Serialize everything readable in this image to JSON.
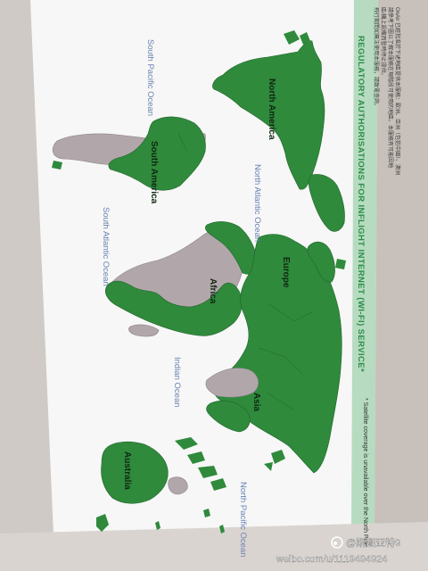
{
  "header": {
    "title": "REGULATORY AUTHORISATIONS FOR INFLIGHT INTERNET (WI-FI) SERVICE*",
    "chinese_lines": [
      "OnAir 已經批准於下述地區提供本服務：歐洲、亞洲（包括中國）、澳洲",
      "請參考下圖以了解本服務在現階段可使用的地區。本服務有可能因地",
      "區/機上設備而暫時停止提供。",
      "飛行期間如無法使用本服務，請致電查詢。"
    ]
  },
  "map": {
    "continent_labels": [
      "North America",
      "South America",
      "Europe",
      "Africa",
      "Asia",
      "Australia"
    ],
    "ocean_labels": [
      "South Pacific Ocean",
      "North Atlantic Ocean",
      "South Atlantic Ocean",
      "Indian Ocean",
      "North Pacific Ocean"
    ],
    "colors": {
      "authorised": "#2f8a3c",
      "not_authorised": "#b1a7ab",
      "ocean": "#f6f7f6",
      "ocean_label": "#6a82b6",
      "header_green": "#2a8e47",
      "footnote_band": "#b7dbc0"
    }
  },
  "footnote": "* Satellite coverage is unavailable over the North Pole",
  "watermark": {
    "handle": "@斯图亚特9",
    "url": "weibo.com/u/1119494924"
  }
}
